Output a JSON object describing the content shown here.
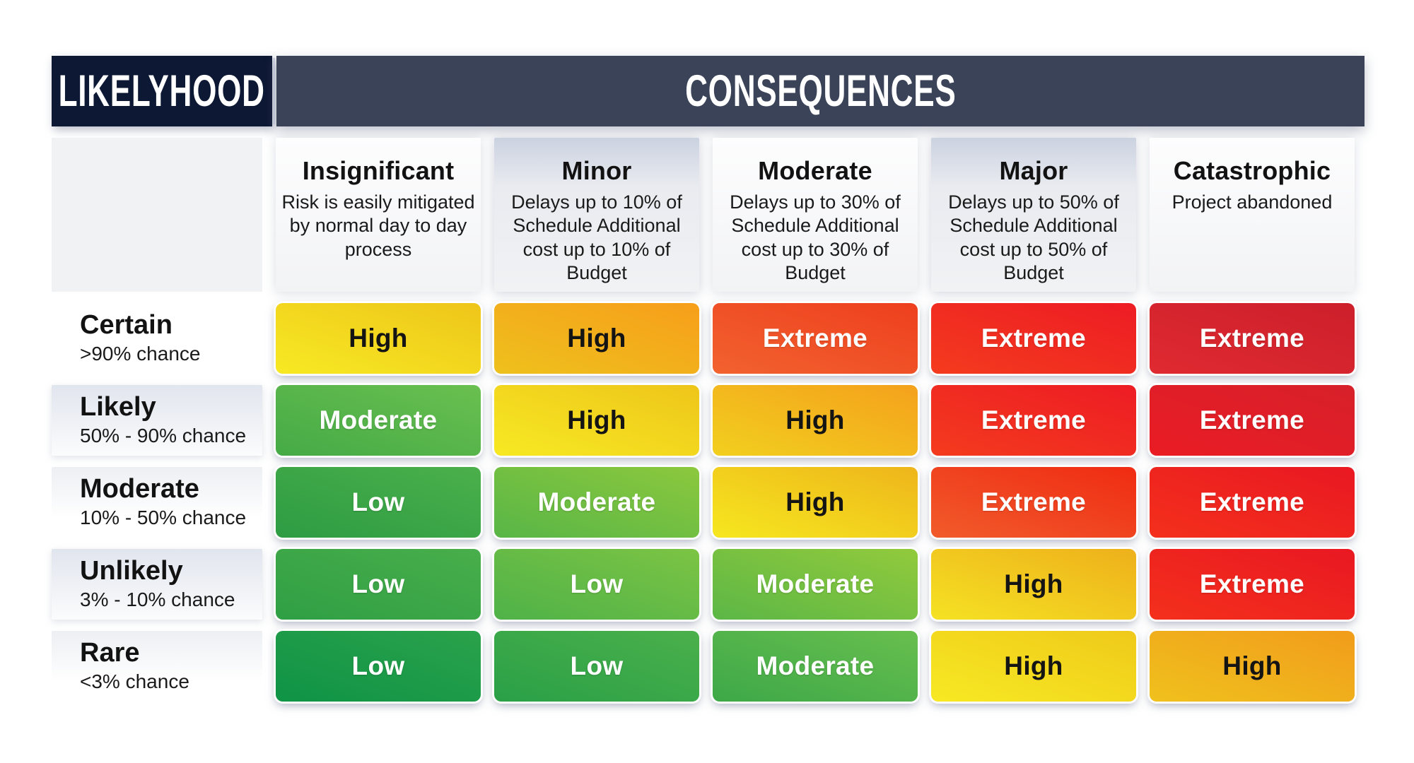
{
  "header": {
    "likelihood_label": "LIKELYHOOD",
    "consequences_label": "CONSEQUENCES",
    "likelihood_bg": "#0d1834",
    "consequences_bg": "#3a4358"
  },
  "columns": [
    {
      "title": "Insignificant",
      "description": "Risk is easily mitigated by normal day to day process",
      "tint": "light"
    },
    {
      "title": "Minor",
      "description": "Delays up to 10% of Schedule Additional cost up to 10% of Budget",
      "tint": "shaded"
    },
    {
      "title": "Moderate",
      "description": "Delays up to 30% of Schedule Additional cost up to 30% of Budget",
      "tint": "light"
    },
    {
      "title": "Major",
      "description": "Delays up to 50% of Schedule Additional cost up to 50% of Budget",
      "tint": "shaded"
    },
    {
      "title": "Catastrophic",
      "description": "Project abandoned",
      "tint": "light"
    }
  ],
  "rows": [
    {
      "title": "Certain",
      "subtitle": ">90% chance",
      "shade": "none",
      "cells": [
        {
          "label": "High",
          "from": "#f7e923",
          "to": "#eec51a",
          "text": "#141414"
        },
        {
          "label": "High",
          "from": "#eec11d",
          "to": "#f79e1a",
          "text": "#141414"
        },
        {
          "label": "Extreme",
          "from": "#f2622f",
          "to": "#ee3f1e",
          "text": "#ffffff"
        },
        {
          "label": "Extreme",
          "from": "#f43b1e",
          "to": "#ed1c24",
          "text": "#ffffff"
        },
        {
          "label": "Extreme",
          "from": "#e02a31",
          "to": "#cc1f2b",
          "text": "#ffffff"
        }
      ]
    },
    {
      "title": "Likely",
      "subtitle": "50% - 90% chance",
      "shade": "strong",
      "cells": [
        {
          "label": "Moderate",
          "from": "#45aa46",
          "to": "#6ac050",
          "text": "#ffffff"
        },
        {
          "label": "High",
          "from": "#f7e923",
          "to": "#eec51a",
          "text": "#141414"
        },
        {
          "label": "High",
          "from": "#f2cf1e",
          "to": "#f4a11c",
          "text": "#141414"
        },
        {
          "label": "Extreme",
          "from": "#f43b1e",
          "to": "#ed1c24",
          "text": "#ffffff"
        },
        {
          "label": "Extreme",
          "from": "#ea1c24",
          "to": "#d7202a",
          "text": "#ffffff"
        }
      ]
    },
    {
      "title": "Moderate",
      "subtitle": "10% - 50% chance",
      "shade": "soft",
      "cells": [
        {
          "label": "Low",
          "from": "#2d9c43",
          "to": "#4bb04b",
          "text": "#ffffff"
        },
        {
          "label": "Moderate",
          "from": "#58b647",
          "to": "#8cc83d",
          "text": "#ffffff"
        },
        {
          "label": "High",
          "from": "#f6e71f",
          "to": "#eeb51b",
          "text": "#141414"
        },
        {
          "label": "Extreme",
          "from": "#f15b2b",
          "to": "#f02b13",
          "text": "#ffffff"
        },
        {
          "label": "Extreme",
          "from": "#f4301c",
          "to": "#e91822",
          "text": "#ffffff"
        }
      ]
    },
    {
      "title": "Unlikely",
      "subtitle": "3% - 10% chance",
      "shade": "strong",
      "cells": [
        {
          "label": "Low",
          "from": "#2f9f44",
          "to": "#49ae4b",
          "text": "#ffffff"
        },
        {
          "label": "Low",
          "from": "#4fb248",
          "to": "#7cc444",
          "text": "#ffffff"
        },
        {
          "label": "Moderate",
          "from": "#5cb746",
          "to": "#92ca3c",
          "text": "#ffffff"
        },
        {
          "label": "High",
          "from": "#f5e223",
          "to": "#eeb01b",
          "text": "#141414"
        },
        {
          "label": "Extreme",
          "from": "#f4301c",
          "to": "#e91822",
          "text": "#ffffff"
        }
      ]
    },
    {
      "title": "Rare",
      "subtitle": "<3% chance",
      "shade": "soft",
      "cells": [
        {
          "label": "Low",
          "from": "#0f9346",
          "to": "#2ba24b",
          "text": "#ffffff"
        },
        {
          "label": "Low",
          "from": "#2aa047",
          "to": "#4bb04b",
          "text": "#ffffff"
        },
        {
          "label": "Moderate",
          "from": "#3da848",
          "to": "#68bf4e",
          "text": "#ffffff"
        },
        {
          "label": "High",
          "from": "#f7e923",
          "to": "#efc91a",
          "text": "#141414"
        },
        {
          "label": "High",
          "from": "#f0c11d",
          "to": "#f19c1b",
          "text": "#141414"
        }
      ]
    }
  ]
}
